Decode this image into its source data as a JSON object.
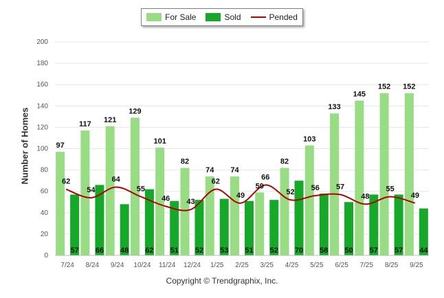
{
  "chart_data": {
    "type": "bar",
    "title": "",
    "ylabel": "Number of Homes",
    "xlabel": "",
    "ylim": [
      0,
      200
    ],
    "yticks": [
      0,
      20,
      40,
      60,
      80,
      100,
      120,
      140,
      160,
      180,
      200
    ],
    "grid": true,
    "legend_position": "top-center",
    "categories": [
      "7/24",
      "8/24",
      "9/24",
      "10/24",
      "11/24",
      "12/24",
      "1/25",
      "2/25",
      "3/25",
      "4/25",
      "5/25",
      "6/25",
      "7/25",
      "8/25",
      "9/25"
    ],
    "series": [
      {
        "name": "For Sale",
        "type": "bar",
        "color": "#98dc84",
        "values": [
          97,
          117,
          121,
          129,
          101,
          82,
          74,
          74,
          59,
          82,
          103,
          133,
          145,
          152,
          152
        ]
      },
      {
        "name": "Sold",
        "type": "bar",
        "color": "#16a828",
        "values": [
          57,
          66,
          48,
          62,
          51,
          52,
          53,
          51,
          52,
          70,
          58,
          50,
          57,
          57,
          44
        ]
      },
      {
        "name": "Pended",
        "type": "line",
        "color": "#b30000",
        "values": [
          62,
          54,
          64,
          55,
          46,
          43,
          62,
          49,
          66,
          52,
          56,
          57,
          48,
          55,
          49
        ]
      }
    ]
  },
  "copyright": "Copyright © Trendgraphix, Inc."
}
